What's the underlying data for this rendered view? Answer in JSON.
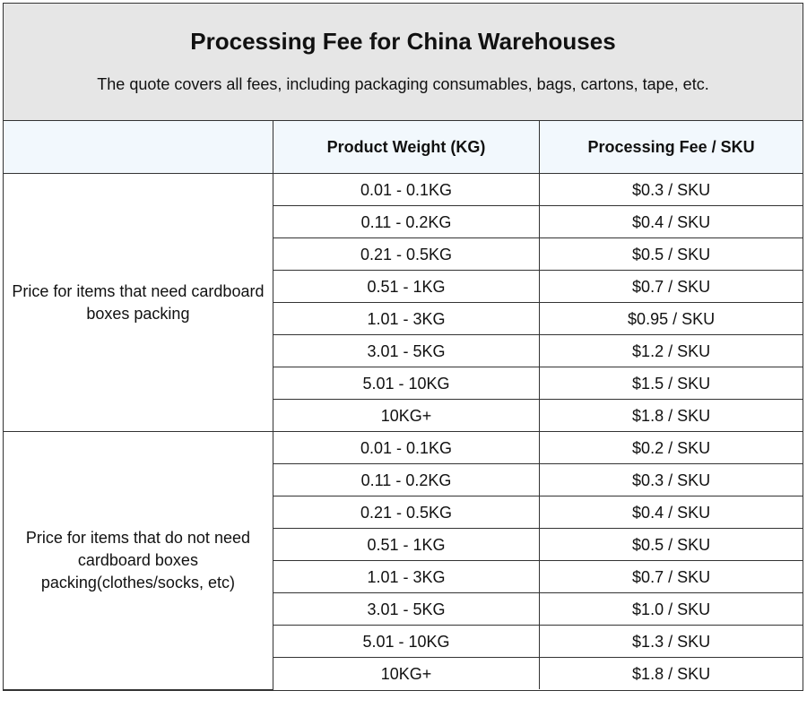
{
  "header": {
    "title": "Processing Fee for China Warehouses",
    "subtitle": "The quote covers all fees, including packaging consumables, bags, cartons, tape, etc."
  },
  "table": {
    "columns": [
      "",
      "Product Weight (KG)",
      "Processing Fee / SKU"
    ],
    "groups": [
      {
        "label": "Price for items that need cardboard boxes packing",
        "rows": [
          [
            "0.01 - 0.1KG",
            "$0.3 / SKU"
          ],
          [
            "0.11 - 0.2KG",
            "$0.4 / SKU"
          ],
          [
            "0.21 - 0.5KG",
            "$0.5 / SKU"
          ],
          [
            "0.51 - 1KG",
            "$0.7 / SKU"
          ],
          [
            "1.01 - 3KG",
            "$0.95 / SKU"
          ],
          [
            "3.01 - 5KG",
            "$1.2 / SKU"
          ],
          [
            "5.01 - 10KG",
            "$1.5 / SKU"
          ],
          [
            "10KG+",
            "$1.8 / SKU"
          ]
        ]
      },
      {
        "label": "Price for items that do not need cardboard boxes packing(clothes/socks, etc)",
        "rows": [
          [
            "0.01 - 0.1KG",
            "$0.2 / SKU"
          ],
          [
            "0.11 - 0.2KG",
            "$0.3 / SKU"
          ],
          [
            "0.21 - 0.5KG",
            "$0.4 / SKU"
          ],
          [
            "0.51 - 1KG",
            "$0.5 / SKU"
          ],
          [
            "1.01 - 3KG",
            "$0.7 / SKU"
          ],
          [
            "3.01 - 5KG",
            "$1.0 / SKU"
          ],
          [
            "5.01 - 10KG",
            "$1.3 / SKU"
          ],
          [
            "10KG+",
            "$1.8 / SKU"
          ]
        ]
      }
    ]
  }
}
